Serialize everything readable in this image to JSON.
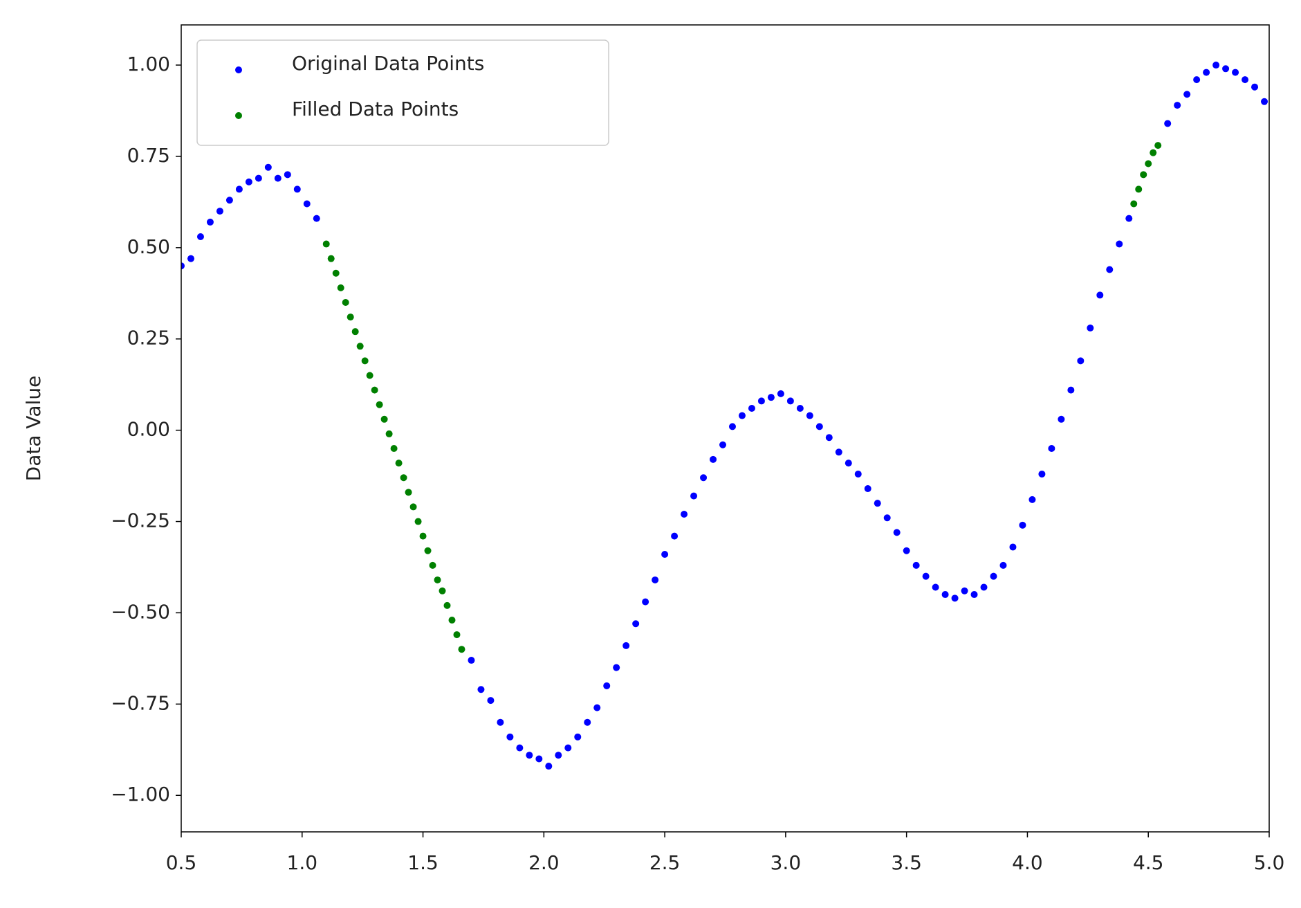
{
  "chart_data": {
    "type": "scatter",
    "ylabel": "Data Value",
    "xlim": [
      0.5,
      5.0
    ],
    "xticks": [
      0.5,
      1.0,
      1.5,
      2.0,
      2.5,
      3.0,
      3.5,
      4.0,
      4.5,
      5.0
    ],
    "ylim": [
      -1.1,
      1.11
    ],
    "yticks": [
      {
        "value": 1,
        "label": "1.00"
      },
      {
        "value": 0.75,
        "label": "0.75"
      },
      {
        "value": 0.5,
        "label": "0.50"
      },
      {
        "value": 0.25,
        "label": "0.25"
      },
      {
        "value": 0,
        "label": "0.00"
      },
      {
        "value": -0.25,
        "label": "−0.25"
      },
      {
        "value": -0.5,
        "label": "−0.50"
      },
      {
        "value": -0.75,
        "label": "−0.75"
      },
      {
        "value": -1,
        "label": "−1.00"
      }
    ],
    "legend": "upper left",
    "series": [
      {
        "name": "Original Data Points",
        "color": "#0000ff",
        "x": [
          0.5,
          0.54,
          0.58,
          0.62,
          0.66,
          0.7,
          0.74,
          0.78,
          0.82,
          0.86,
          0.9,
          0.94,
          0.98,
          1.02,
          1.06,
          1.7,
          1.74,
          1.78,
          1.82,
          1.86,
          1.9,
          1.94,
          1.98,
          2.02,
          2.06,
          2.1,
          2.14,
          2.18,
          2.22,
          2.26,
          2.3,
          2.34,
          2.38,
          2.42,
          2.46,
          2.5,
          2.54,
          2.58,
          2.62,
          2.66,
          2.7,
          2.74,
          2.78,
          2.82,
          2.86,
          2.9,
          2.94,
          2.98,
          3.02,
          3.06,
          3.1,
          3.14,
          3.18,
          3.22,
          3.26,
          3.3,
          3.34,
          3.38,
          3.42,
          3.46,
          3.5,
          3.54,
          3.58,
          3.62,
          3.66,
          3.7,
          3.74,
          3.78,
          3.82,
          3.86,
          3.9,
          3.94,
          3.98,
          4.02,
          4.06,
          4.1,
          4.14,
          4.18,
          4.22,
          4.26,
          4.3,
          4.34,
          4.38,
          4.42,
          4.58,
          4.62,
          4.66,
          4.7,
          4.74,
          4.78,
          4.82,
          4.86,
          4.9,
          4.94,
          4.98
        ],
        "values": [
          0.45,
          0.47,
          0.53,
          0.57,
          0.6,
          0.63,
          0.66,
          0.68,
          0.69,
          0.72,
          0.69,
          0.7,
          0.66,
          0.62,
          0.58,
          -0.63,
          -0.71,
          -0.74,
          -0.8,
          -0.84,
          -0.87,
          -0.89,
          -0.9,
          -0.92,
          -0.89,
          -0.87,
          -0.84,
          -0.8,
          -0.76,
          -0.7,
          -0.65,
          -0.59,
          -0.53,
          -0.47,
          -0.41,
          -0.34,
          -0.29,
          -0.23,
          -0.18,
          -0.13,
          -0.08,
          -0.04,
          0.01,
          0.04,
          0.06,
          0.08,
          0.09,
          0.1,
          0.08,
          0.06,
          0.04,
          0.01,
          -0.02,
          -0.06,
          -0.09,
          -0.12,
          -0.16,
          -0.2,
          -0.24,
          -0.28,
          -0.33,
          -0.37,
          -0.4,
          -0.43,
          -0.45,
          -0.46,
          -0.44,
          -0.45,
          -0.43,
          -0.4,
          -0.37,
          -0.32,
          -0.26,
          -0.19,
          -0.12,
          -0.05,
          0.03,
          0.11,
          0.19,
          0.28,
          0.37,
          0.44,
          0.51,
          0.58,
          0.84,
          0.89,
          0.92,
          0.96,
          0.98,
          1.0,
          0.99,
          0.98,
          0.96,
          0.94,
          0.9
        ]
      },
      {
        "name": "Filled Data Points",
        "color": "#008000",
        "x": [
          1.1,
          1.12,
          1.14,
          1.16,
          1.18,
          1.2,
          1.22,
          1.24,
          1.26,
          1.28,
          1.3,
          1.32,
          1.34,
          1.36,
          1.38,
          1.4,
          1.42,
          1.44,
          1.46,
          1.48,
          1.5,
          1.52,
          1.54,
          1.56,
          1.58,
          1.6,
          1.62,
          1.64,
          1.66,
          4.44,
          4.46,
          4.48,
          4.5,
          4.52,
          4.54
        ],
        "values": [
          0.51,
          0.47,
          0.43,
          0.39,
          0.35,
          0.31,
          0.27,
          0.23,
          0.19,
          0.15,
          0.11,
          0.07,
          0.03,
          -0.01,
          -0.05,
          -0.09,
          -0.13,
          -0.17,
          -0.21,
          -0.25,
          -0.29,
          -0.33,
          -0.37,
          -0.41,
          -0.44,
          -0.48,
          -0.52,
          -0.56,
          -0.6,
          0.62,
          0.66,
          0.7,
          0.73,
          0.76,
          0.78
        ]
      }
    ]
  }
}
